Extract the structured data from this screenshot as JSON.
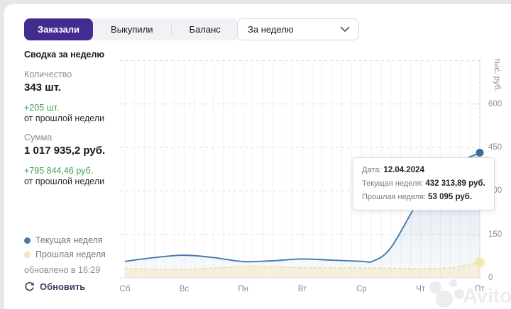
{
  "tabs": {
    "items": [
      {
        "label": "Заказали",
        "active": true
      },
      {
        "label": "Выкупили",
        "active": false
      },
      {
        "label": "Баланс",
        "active": false
      }
    ]
  },
  "period_select": {
    "value": "За неделю"
  },
  "summary": {
    "title": "Сводка за неделю",
    "quantity_label": "Количество",
    "quantity_value": "343 шт.",
    "quantity_delta": "+205 шт.",
    "quantity_delta_caption": "от прошлой недели",
    "sum_label": "Сумма",
    "sum_value": "1 017 935,2 руб.",
    "sum_delta": "+795 844,46 руб.",
    "sum_delta_caption": "от прошлой недели"
  },
  "legend": {
    "current_label": "Текущая неделя",
    "previous_label": "Прошлая неделя",
    "updated_text": "обновлено в 16:29",
    "refresh_label": "Обновить"
  },
  "tooltip": {
    "date_label": "Дата:",
    "date_value": "12.04.2024",
    "current_label": "Текущая неделя:",
    "current_value": "432 313,89 руб.",
    "previous_label": "Прошлая неделя:",
    "previous_value": "53 095 руб."
  },
  "watermark": {
    "text": "Avito"
  },
  "colors": {
    "accent": "#432C8F",
    "positive_green": "#3F9E4D",
    "refresh_link": "#413D63",
    "current_series": "#4678A8",
    "current_marker": "#3D6B9E",
    "previous_series": "#EFD9A0",
    "previous_fill": "rgba(244,224,160,0.32)",
    "grid_dashed": "#DDDBE4",
    "grid_minor": "#F3F2F7",
    "hover_line": "#C8C6D2",
    "baseline": "#E9E7EE"
  },
  "chart_data": {
    "type": "line",
    "title": "",
    "x_categories": [
      "Сб",
      "Вс",
      "Пн",
      "Вт",
      "Ср",
      "Чт",
      "Пт"
    ],
    "y_ticks": [
      0,
      150,
      300,
      450,
      600
    ],
    "y_axis_title": "тыс. руб.",
    "ylim": [
      0,
      750
    ],
    "grid": "horizontal-dashed with minor vertical lines",
    "legend_position": "bottom-left outside plot",
    "series": [
      {
        "name": "Текущая неделя",
        "style": "solid",
        "points": [
          [
            0,
            57
          ],
          [
            0.5,
            70
          ],
          [
            1,
            78
          ],
          [
            1.5,
            70
          ],
          [
            2,
            56
          ],
          [
            2.5,
            59
          ],
          [
            3,
            65
          ],
          [
            3.5,
            61
          ],
          [
            4,
            57
          ],
          [
            4.2,
            58
          ],
          [
            4.5,
            105
          ],
          [
            5,
            275
          ],
          [
            5.5,
            380
          ],
          [
            6,
            432.31
          ]
        ]
      },
      {
        "name": "Прошлая неделя",
        "style": "dashed",
        "points": [
          [
            0,
            33
          ],
          [
            0.5,
            30
          ],
          [
            1,
            29
          ],
          [
            1.5,
            34
          ],
          [
            2,
            39
          ],
          [
            2.5,
            38
          ],
          [
            3,
            35
          ],
          [
            3.5,
            34
          ],
          [
            4,
            34
          ],
          [
            4.5,
            33
          ],
          [
            5,
            32
          ],
          [
            5.5,
            35
          ],
          [
            6,
            53.1
          ]
        ]
      }
    ],
    "hover_point": {
      "x_day": 6,
      "date": "12.04.2024",
      "current_thousand_rub": 432.31389,
      "previous_thousand_rub": 53.095
    }
  }
}
